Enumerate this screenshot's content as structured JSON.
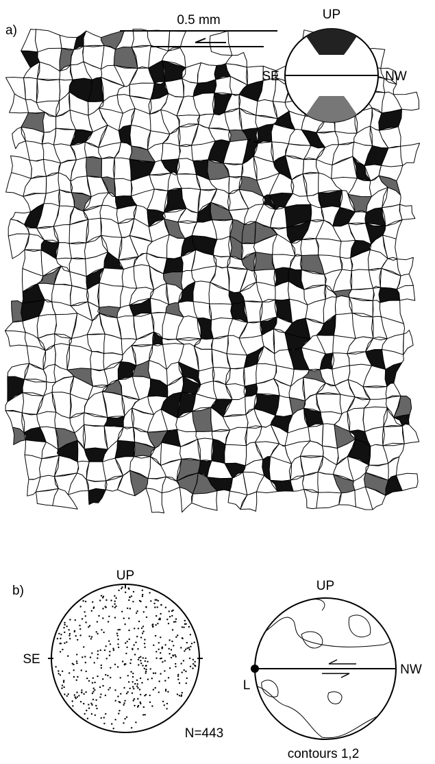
{
  "panel_a": {
    "label": "a)",
    "scale_bar": "0.5 mm",
    "inset": {
      "up": "UP",
      "left": "SE",
      "right": "NW"
    }
  },
  "panel_b": {
    "label": "b)",
    "left_net": {
      "up": "UP",
      "left": "SE",
      "count": "N=443"
    },
    "right_net": {
      "up": "UP",
      "right": "NW",
      "lineation": "L",
      "caption": "contours 1,2"
    }
  }
}
